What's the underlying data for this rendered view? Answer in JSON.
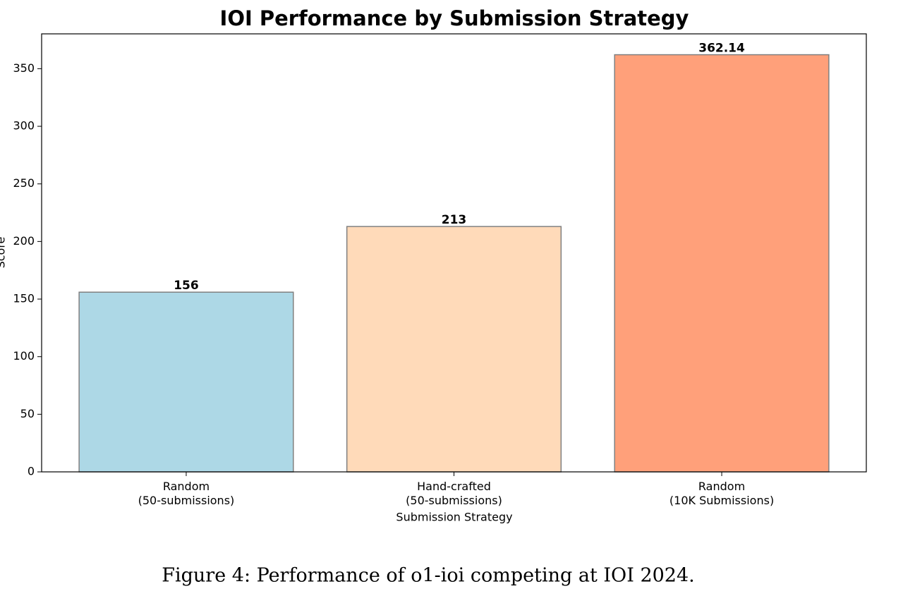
{
  "chart_data": {
    "type": "bar",
    "title": "IOI Performance by Submission Strategy",
    "xlabel": "Submission Strategy",
    "ylabel": "Score",
    "categories": [
      "Random\n(50-submissions)",
      "Hand-crafted\n(50-submissions)",
      "Random\n(10K Submissions)"
    ],
    "values": [
      156,
      213,
      362.14
    ],
    "colors": [
      "#add8e6",
      "#ffdab9",
      "#ffa07a"
    ],
    "edgecolor": "#808080",
    "ylim": [
      0,
      380.25
    ],
    "yticks": [
      0,
      50,
      100,
      150,
      200,
      250,
      300,
      350
    ],
    "grid": false
  },
  "caption": "Figure 4: Performance of o1-ioi competing at IOI 2024."
}
